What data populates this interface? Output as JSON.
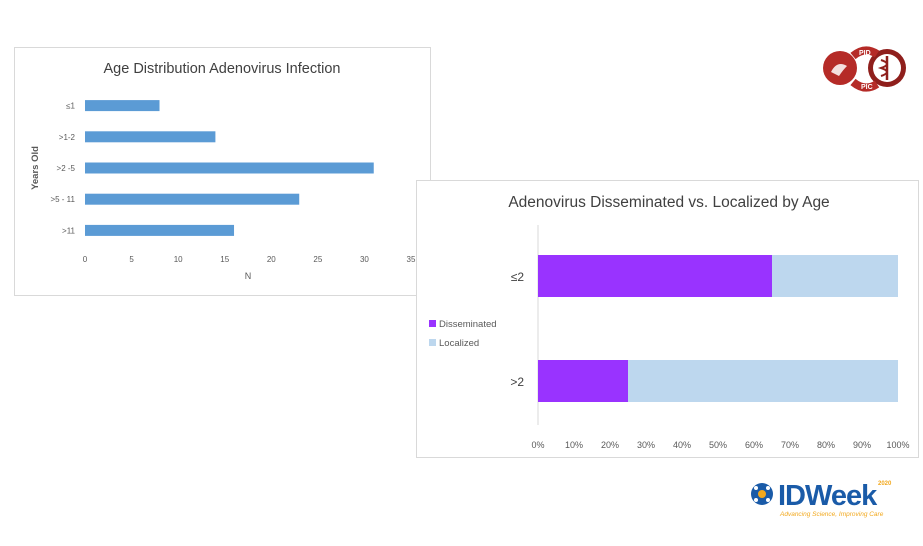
{
  "chart_data": [
    {
      "type": "bar",
      "orientation": "horizontal",
      "title": "Age Distribution Adenovirus Infection",
      "xlabel": "N",
      "ylabel": "Years Old",
      "categories": [
        "≤1",
        ">1-2",
        ">2 -5",
        ">5 - 11",
        ">11"
      ],
      "values": [
        8,
        14,
        31,
        23,
        16
      ],
      "xlim": [
        0,
        35
      ],
      "xticks": [
        "0",
        "5",
        "10",
        "15",
        "20",
        "25",
        "30",
        "35"
      ],
      "color": "#5b9bd5",
      "grid": false,
      "legend": "none"
    },
    {
      "type": "bar",
      "orientation": "horizontal",
      "stacked": "percent",
      "title": "Adenovirus Disseminated vs. Localized by Age",
      "categories": [
        "≤2",
        ">2"
      ],
      "series": [
        {
          "name": "Disseminated",
          "values": [
            65,
            25
          ],
          "color": "#9933ff"
        },
        {
          "name": "Localized",
          "values": [
            35,
            75
          ],
          "color": "#bdd7ee"
        }
      ],
      "xlim": [
        0,
        100
      ],
      "xticks": [
        "0%",
        "10%",
        "20%",
        "30%",
        "40%",
        "50%",
        "60%",
        "70%",
        "80%",
        "90%",
        "100%"
      ],
      "grid": false,
      "legend": "left"
    }
  ],
  "logos": {
    "pids": {
      "text_top": "PID",
      "text_bottom": "PIC",
      "color": "#b52b27"
    },
    "idweek": {
      "name": "IDWeek",
      "year": "2020",
      "tagline": "Advancing Science, Improving Care",
      "blue": "#1a5ba8",
      "gold": "#f2a81d"
    }
  }
}
